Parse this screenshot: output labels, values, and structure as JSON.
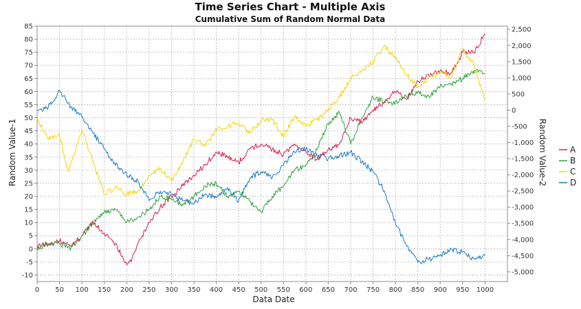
{
  "chart_data": {
    "type": "line",
    "title": "Time Series Chart - Multiple Axis",
    "subtitle": "Cumulative Sum of Random Normal Data",
    "xlabel": "Data Date",
    "ylabel_left": "Random Value-1",
    "ylabel_right": "Random Value-2",
    "xlim": [
      0,
      1050
    ],
    "ylim_left": [
      -12.5,
      85
    ],
    "ylim_right": [
      -5300,
      2600
    ],
    "x_ticks": [
      "0",
      "50",
      "100",
      "150",
      "200",
      "250",
      "300",
      "350",
      "400",
      "450",
      "500",
      "550",
      "600",
      "650",
      "700",
      "750",
      "800",
      "850",
      "900",
      "950",
      "1000"
    ],
    "x_tick_values": [
      0,
      50,
      100,
      150,
      200,
      250,
      300,
      350,
      400,
      450,
      500,
      550,
      600,
      650,
      700,
      750,
      800,
      850,
      900,
      950,
      1000
    ],
    "y_left_ticks": [
      "-10",
      "-5",
      "0",
      "5",
      "10",
      "15",
      "20",
      "25",
      "30",
      "35",
      "40",
      "45",
      "50",
      "55",
      "60",
      "65",
      "70",
      "75",
      "80",
      "85"
    ],
    "y_left_tick_values": [
      -10,
      -5,
      0,
      5,
      10,
      15,
      20,
      25,
      30,
      35,
      40,
      45,
      50,
      55,
      60,
      65,
      70,
      75,
      80,
      85
    ],
    "y_right_ticks": [
      "-5,000",
      "-4,500",
      "-4,000",
      "-3,500",
      "-3,000",
      "-2,500",
      "-2,000",
      "-1,500",
      "-1,000",
      "-500",
      "0",
      "500",
      "1,000",
      "1,500",
      "2,000",
      "2,500"
    ],
    "y_right_tick_values": [
      -5000,
      -4500,
      -4000,
      -3500,
      -3000,
      -2500,
      -2000,
      -1500,
      -1000,
      -500,
      0,
      500,
      1000,
      1500,
      2000,
      2500
    ],
    "grid": true,
    "legend_position": "right",
    "series": [
      {
        "name": "A",
        "axis": "left",
        "color": "#d81b4a",
        "x": [
          0,
          25,
          50,
          75,
          100,
          125,
          150,
          175,
          200,
          210,
          225,
          250,
          275,
          300,
          325,
          350,
          375,
          400,
          425,
          450,
          475,
          500,
          525,
          550,
          575,
          600,
          625,
          650,
          675,
          700,
          725,
          750,
          775,
          800,
          825,
          850,
          875,
          900,
          925,
          950,
          975,
          1000
        ],
        "y": [
          1,
          2,
          3,
          1,
          5,
          10,
          6,
          2,
          -6,
          -5,
          2,
          10,
          16,
          20,
          24,
          28,
          32,
          37,
          35,
          33,
          38,
          40,
          38,
          36,
          40,
          37,
          34,
          38,
          40,
          50,
          48,
          53,
          56,
          60,
          57,
          64,
          66,
          68,
          67,
          75,
          75,
          82
        ]
      },
      {
        "name": "B",
        "axis": "left",
        "color": "#2e9e3c",
        "x": [
          0,
          25,
          50,
          75,
          100,
          125,
          150,
          175,
          200,
          225,
          250,
          275,
          300,
          325,
          350,
          375,
          400,
          425,
          450,
          475,
          500,
          525,
          550,
          575,
          600,
          625,
          650,
          675,
          700,
          725,
          750,
          775,
          800,
          825,
          850,
          875,
          900,
          925,
          950,
          975,
          1000
        ],
        "y": [
          0,
          2,
          2,
          0,
          5,
          10,
          14,
          15,
          10,
          12,
          15,
          20,
          19,
          17,
          20,
          24,
          25,
          20,
          22,
          18,
          14,
          20,
          24,
          30,
          32,
          38,
          48,
          52,
          40,
          50,
          58,
          56,
          56,
          58,
          60,
          58,
          62,
          63,
          65,
          68,
          67
        ]
      },
      {
        "name": "C",
        "axis": "right",
        "color": "#f2d600",
        "x": [
          0,
          25,
          50,
          70,
          100,
          125,
          150,
          175,
          200,
          225,
          250,
          275,
          300,
          325,
          350,
          375,
          400,
          425,
          450,
          475,
          500,
          525,
          550,
          575,
          600,
          625,
          650,
          675,
          700,
          725,
          750,
          775,
          800,
          825,
          850,
          875,
          900,
          925,
          950,
          975,
          1000
        ],
        "y": [
          -250,
          -900,
          -800,
          -1900,
          -600,
          -1600,
          -2600,
          -2400,
          -2600,
          -2500,
          -2000,
          -1800,
          -2200,
          -1600,
          -900,
          -1100,
          -600,
          -500,
          -400,
          -700,
          -300,
          -300,
          -800,
          -200,
          -500,
          -300,
          0,
          400,
          1000,
          1200,
          1500,
          2000,
          1600,
          1100,
          700,
          1000,
          1200,
          1000,
          1900,
          1400,
          300
        ]
      },
      {
        "name": "D",
        "axis": "right",
        "color": "#1677c2",
        "x": [
          0,
          25,
          50,
          75,
          100,
          125,
          150,
          175,
          200,
          225,
          250,
          275,
          300,
          325,
          350,
          375,
          400,
          425,
          450,
          475,
          500,
          525,
          550,
          575,
          600,
          625,
          650,
          675,
          700,
          725,
          750,
          775,
          800,
          825,
          850,
          875,
          900,
          925,
          950,
          975,
          1000
        ],
        "y": [
          0,
          100,
          600,
          100,
          -200,
          -700,
          -1200,
          -1700,
          -2000,
          -2200,
          -2800,
          -2500,
          -2600,
          -2800,
          -2900,
          -2600,
          -2700,
          -2400,
          -2800,
          -2100,
          -1900,
          -2100,
          -1700,
          -1300,
          -1200,
          -1400,
          -1500,
          -1400,
          -1300,
          -1600,
          -1900,
          -2500,
          -3500,
          -4200,
          -4700,
          -4600,
          -4500,
          -4300,
          -4400,
          -4600,
          -4500
        ]
      }
    ]
  }
}
